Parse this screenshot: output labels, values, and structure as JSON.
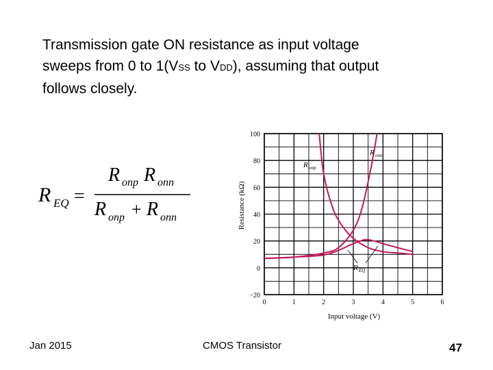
{
  "slide": {
    "line1": "Transmission gate ON resistance as input voltage",
    "line2_a": "sweeps from 0 to 1(V",
    "line2_sub1": "SS",
    "line2_b": " to V",
    "line2_sub2": "DD",
    "line2_c": "), assuming that output",
    "line3": "follows closely."
  },
  "formula": {
    "lhs_R": "R",
    "lhs_sub": "EQ",
    "equals": "=",
    "num_R1": "R",
    "num_sub1": "onp",
    "num_R2": "R",
    "num_sub2": "onn",
    "den_R1": "R",
    "den_sub1": "onp",
    "plus": "+",
    "den_R2": "R",
    "den_sub2": "onn"
  },
  "footer": {
    "date": "Jan 2015",
    "title": "CMOS Transistor",
    "page": "47"
  },
  "chart_data": {
    "type": "line",
    "xlabel": "Input voltage (V)",
    "ylabel": "Resistance (kΩ)",
    "xlim": [
      0,
      6
    ],
    "ylim": [
      -20,
      100
    ],
    "xticks": [
      "0",
      "1",
      "2",
      "3",
      "4",
      "5",
      "6"
    ],
    "yticks": [
      "100",
      "80",
      "60",
      "40",
      "20",
      "0",
      "−20"
    ],
    "grid": true,
    "series_color": "#c2185b",
    "series": [
      {
        "label_R": "R",
        "label_sub": "onp",
        "x": [
          1.85,
          2.0,
          2.3,
          2.6,
          3.0,
          3.5,
          4.0,
          4.5,
          5.0
        ],
        "y": [
          100,
          70,
          45,
          32,
          22,
          15,
          12,
          11,
          10
        ]
      },
      {
        "label_R": "R",
        "label_sub": "onn",
        "x": [
          0.0,
          1.0,
          2.0,
          2.5,
          3.0,
          3.3,
          3.6,
          3.8
        ],
        "y": [
          7,
          8,
          11,
          15,
          28,
          45,
          75,
          100
        ]
      },
      {
        "label_R": "R",
        "label_sub": "EQ",
        "x": [
          0.0,
          1.0,
          2.0,
          2.5,
          3.0,
          3.4,
          3.7,
          4.0,
          4.5,
          5.0
        ],
        "y": [
          7,
          8,
          9.5,
          13,
          18,
          21,
          20,
          18,
          15,
          12
        ]
      }
    ]
  }
}
